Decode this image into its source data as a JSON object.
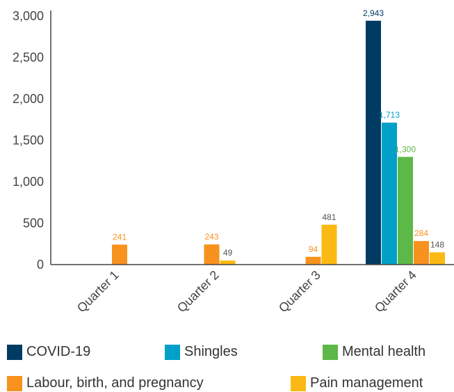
{
  "chart_data": {
    "type": "bar",
    "categories": [
      "Quarter 1",
      "Quarter 2",
      "Quarter 3",
      "Quarter 4"
    ],
    "series": [
      {
        "name": "COVID-19",
        "color": "#003b64",
        "values": [
          null,
          null,
          null,
          2943
        ],
        "labels": [
          "",
          "",
          "",
          "2,943"
        ]
      },
      {
        "name": "Shingles",
        "color": "#00a0c8",
        "values": [
          null,
          null,
          null,
          1713
        ],
        "labels": [
          "",
          "",
          "",
          "1,713"
        ]
      },
      {
        "name": "Mental health",
        "color": "#5cb847",
        "values": [
          null,
          null,
          null,
          1300
        ],
        "labels": [
          "",
          "",
          "",
          "1,300"
        ]
      },
      {
        "name": "Labour, birth, and pregnancy",
        "color": "#f7921e",
        "values": [
          241,
          243,
          94,
          284
        ],
        "labels": [
          "241",
          "243",
          "94",
          "284"
        ]
      },
      {
        "name": "Pain management",
        "color": "#fdb913",
        "values": [
          null,
          49,
          481,
          148
        ],
        "labels": [
          "",
          "49",
          "481",
          "148"
        ]
      }
    ],
    "y_ticks": [
      0,
      500,
      1000,
      1500,
      2000,
      2500,
      3000
    ],
    "y_tick_labels": [
      "0",
      "500",
      "1,000",
      "1,500",
      "2,000",
      "2,500",
      "3,000"
    ],
    "ylim": [
      0,
      3000
    ],
    "grid": false,
    "legend_position": "bottom"
  }
}
